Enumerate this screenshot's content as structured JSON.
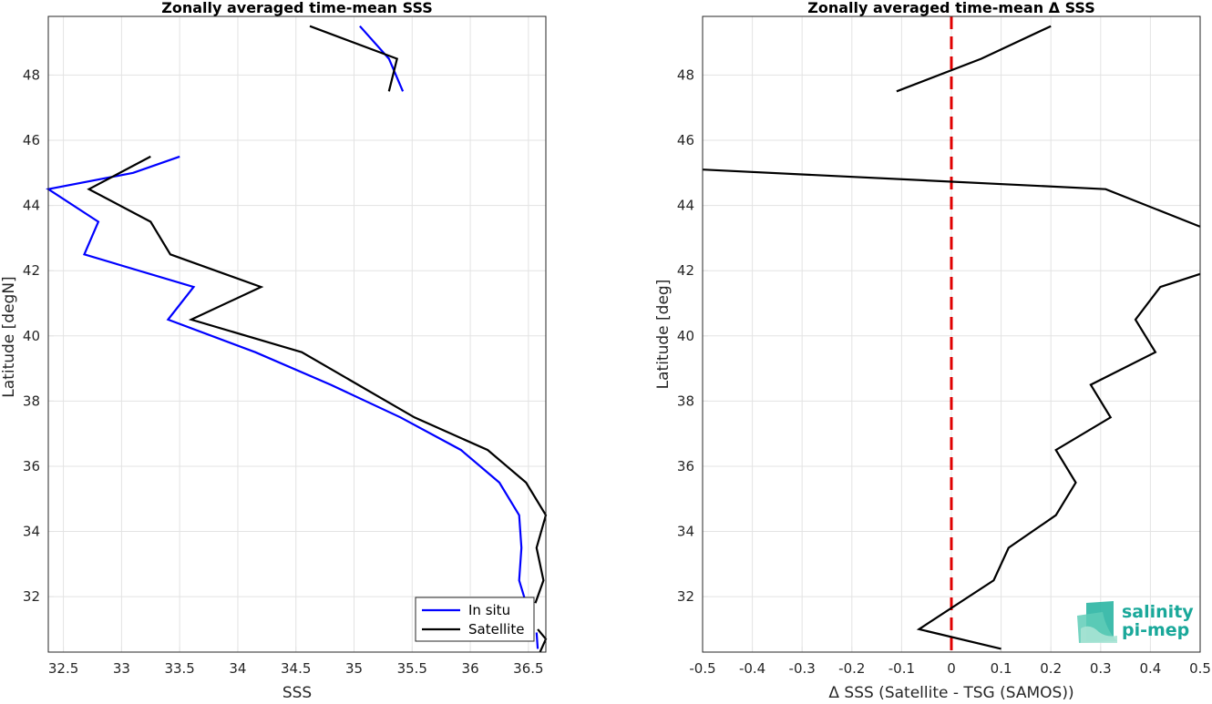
{
  "chart_data": [
    {
      "type": "line",
      "title": "Zonally averaged time-mean SSS",
      "xlabel": "SSS",
      "ylabel": "Latitude [degN]",
      "xlim": [
        32.37,
        36.65
      ],
      "ylim": [
        30.3,
        49.8
      ],
      "xticks": [
        "32.5",
        "33",
        "33.5",
        "34",
        "34.5",
        "35",
        "35.5",
        "36",
        "36.5"
      ],
      "xtick_values": [
        32.5,
        33,
        33.5,
        34,
        34.5,
        35,
        35.5,
        36,
        36.5
      ],
      "yticks": [
        "32",
        "34",
        "36",
        "38",
        "40",
        "42",
        "44",
        "46",
        "48"
      ],
      "ytick_values": [
        32,
        34,
        36,
        38,
        40,
        42,
        44,
        46,
        48
      ],
      "grid": true,
      "legend_position": "bottom-right",
      "legend": [
        "In situ",
        "Satellite"
      ],
      "series": [
        {
          "name": "In situ",
          "color": "#0000ff",
          "segments": [
            [
              [
                35.05,
                49.5
              ],
              [
                35.3,
                48.5
              ],
              [
                35.42,
                47.5
              ]
            ],
            [
              [
                33.5,
                45.5
              ],
              [
                33.1,
                45.0
              ],
              [
                32.37,
                44.5
              ],
              [
                32.8,
                43.5
              ],
              [
                32.68,
                42.5
              ],
              [
                33.62,
                41.5
              ],
              [
                33.4,
                40.5
              ],
              [
                34.15,
                39.5
              ],
              [
                34.8,
                38.5
              ],
              [
                35.4,
                37.5
              ],
              [
                35.92,
                36.5
              ],
              [
                36.25,
                35.5
              ],
              [
                36.42,
                34.5
              ],
              [
                36.44,
                33.5
              ],
              [
                36.42,
                32.5
              ],
              [
                36.48,
                31.8
              ]
            ],
            [
              [
                36.57,
                30.9
              ],
              [
                36.58,
                30.4
              ]
            ]
          ]
        },
        {
          "name": "Satellite",
          "color": "#000000",
          "segments": [
            [
              [
                34.62,
                49.5
              ],
              [
                35.37,
                48.5
              ],
              [
                35.3,
                47.5
              ]
            ],
            [
              [
                33.25,
                45.5
              ],
              [
                32.72,
                44.5
              ],
              [
                33.25,
                43.5
              ],
              [
                33.42,
                42.5
              ],
              [
                34.2,
                41.5
              ],
              [
                33.6,
                40.5
              ],
              [
                34.55,
                39.5
              ],
              [
                35.52,
                37.5
              ],
              [
                36.15,
                36.5
              ],
              [
                36.48,
                35.5
              ],
              [
                36.65,
                34.5
              ],
              [
                36.57,
                33.5
              ],
              [
                36.63,
                32.5
              ],
              [
                36.56,
                31.8
              ]
            ],
            [
              [
                36.58,
                31.0
              ],
              [
                36.65,
                30.7
              ],
              [
                36.6,
                30.3
              ]
            ]
          ]
        }
      ]
    },
    {
      "type": "line",
      "title": "Zonally averaged time-mean Δ SSS",
      "xlabel": "Δ SSS (Satellite - TSG (SAMOS))",
      "ylabel": "Latitude [deg]",
      "xlim": [
        -0.5,
        0.5
      ],
      "ylim": [
        30.3,
        49.8
      ],
      "xticks": [
        "-0.5",
        "-0.4",
        "-0.3",
        "-0.2",
        "-0.1",
        "0",
        "0.1",
        "0.2",
        "0.3",
        "0.4",
        "0.5"
      ],
      "xtick_values": [
        -0.5,
        -0.4,
        -0.3,
        -0.2,
        -0.1,
        0,
        0.1,
        0.2,
        0.3,
        0.4,
        0.5
      ],
      "yticks": [
        "32",
        "34",
        "36",
        "38",
        "40",
        "42",
        "44",
        "46",
        "48"
      ],
      "ytick_values": [
        32,
        34,
        36,
        38,
        40,
        42,
        44,
        46,
        48
      ],
      "grid": true,
      "reference_line": {
        "x": 0,
        "color": "#e00000",
        "style": "dashed"
      },
      "series": [
        {
          "color": "#000000",
          "segments": [
            [
              [
                0.2,
                49.5
              ],
              [
                0.06,
                48.5
              ],
              [
                -0.11,
                47.5
              ]
            ],
            [
              [
                -0.5,
                45.1
              ],
              [
                0.31,
                44.5
              ],
              [
                0.5,
                43.35
              ]
            ],
            [
              [
                0.5,
                41.9
              ],
              [
                0.42,
                41.5
              ],
              [
                0.37,
                40.5
              ],
              [
                0.41,
                39.5
              ],
              [
                0.28,
                38.5
              ],
              [
                0.32,
                37.5
              ],
              [
                0.21,
                36.5
              ],
              [
                0.25,
                35.5
              ],
              [
                0.21,
                34.5
              ],
              [
                0.115,
                33.5
              ],
              [
                0.085,
                32.5
              ],
              [
                -0.065,
                31.0
              ],
              [
                0.1,
                30.4
              ]
            ]
          ]
        }
      ]
    }
  ],
  "logo": {
    "text_line1": "salinity",
    "text_line2": "pi-mep",
    "color": "#1aa89a"
  }
}
